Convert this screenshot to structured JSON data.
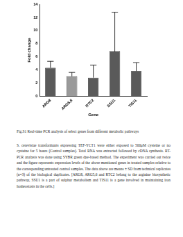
{
  "chart_data": {
    "type": "bar",
    "categories": [
      "ARG8",
      "ARG5,6",
      "RTC2",
      "SSU1",
      "TIS11"
    ],
    "values": [
      4.3,
      3.0,
      2.8,
      6.8,
      3.8
    ],
    "errors": [
      1.0,
      0.6,
      1.9,
      6.0,
      1.3
    ],
    "colors": [
      "#5a5a5a",
      "#9a9a9a",
      "#5a5a5a",
      "#5a5a5a",
      "#5a5a5a"
    ],
    "x_label": "Gene",
    "y_label": "Fold change",
    "ylim": [
      0,
      14
    ],
    "yticks": [
      0,
      2,
      4,
      6,
      8,
      10,
      12,
      14
    ],
    "grid": false
  },
  "caption": {
    "title": "Fig.S1 Real-time PCR analysis of select genes from different metabolic pathways",
    "text": "S. cerevisiae transformants expressing TEF-YCT1 were either exposed to 500μM cysteine or no cysteine for 5 hours (Control samples). Total RNA was extracted followed by cDNA synthesis. RT-PCR analysis was done using SYBR green dye-based method. The experiment was carried out twice and the figure represents expression levels of the above mentioned genes in treated samples relative to the corresponding untreated control samples. The data above are means ± SD from technical replicates (n=3) of the biological duplicates. [ARG8, ARG5,6 and RTC2 belong to the arginine biosynthetic pathway, SSU1 is a part of sulphur metabolism and TIS11 is a gene involved in maintaining iron homeostasis in the cells.]"
  }
}
